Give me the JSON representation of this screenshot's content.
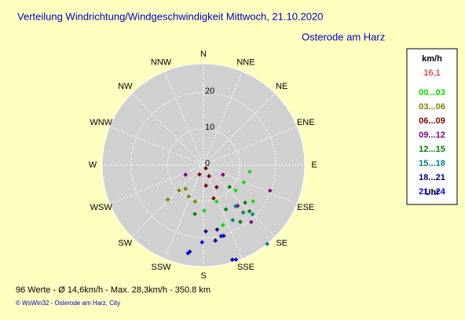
{
  "chart_data": {
    "type": "polar-scatter",
    "title": "Verteilung Windrichtung/Windgeschwindigkeit  Mittwoch, 21.10.2020",
    "subtitle": "Osterode am Harz",
    "directions": [
      "N",
      "NNE",
      "NE",
      "ENE",
      "E",
      "ESE",
      "SE",
      "SSE",
      "S",
      "SSW",
      "SW",
      "WSW",
      "W",
      "WNW",
      "NW",
      "NNW"
    ],
    "rlim": [
      0,
      28
    ],
    "rticks": [
      0,
      10,
      20
    ],
    "grid": true,
    "legend_title": "km/h",
    "legend_value": "16,1",
    "legend_footer": "Uhr",
    "series": [
      {
        "name": "00...03",
        "color": "#00e000",
        "x": [
          98,
          113,
          128,
          126,
          160,
          179,
          162
        ],
        "values": [
          12.9,
          12.1,
          11.3,
          17.0,
          10.7,
          12.6,
          17.4
        ]
      },
      {
        "name": "03...06",
        "color": "#808000",
        "x": [
          224,
          205,
          193,
          226,
          217
        ],
        "values": [
          9.7,
          9.6,
          10.3,
          13.7,
          8.2
        ]
      },
      {
        "name": "06...09",
        "color": "#800000",
        "x": [
          143,
          203,
          153,
          173,
          149,
          163
        ],
        "values": [
          1.1,
          2.8,
          3.4,
          5.7,
          7.1,
          9.6
        ]
      },
      {
        "name": "09...12",
        "color": "#800080",
        "x": [
          242,
          116,
          140,
          140,
          111
        ],
        "values": [
          5.6,
          6.0,
          14.7,
          20.5,
          19.7
        ]
      },
      {
        "name": "12...15",
        "color": "#008000",
        "x": [
          130,
          132,
          135,
          153,
          190,
          147
        ],
        "values": [
          9.4,
          15.5,
          18.0,
          13.7,
          13.7,
          18.7
        ]
      },
      {
        "name": "15...18",
        "color": "#008080",
        "x": [
          142,
          140,
          152,
          141,
          135
        ],
        "values": [
          14.4,
          17.1,
          17.2,
          28.0,
          19.2
        ]
      },
      {
        "name": "18...21",
        "color": "#000080",
        "x": [
          178,
          168,
          164,
          171,
          163,
          189
        ],
        "values": [
          18.3,
          18.2,
          20.3,
          21.1,
          27.3,
          24.2
        ]
      },
      {
        "name": "21...24",
        "color": "#0000ff",
        "x": [
          166,
          181,
          190,
          161
        ],
        "values": [
          20.2,
          21.3,
          24.7,
          27.6
        ]
      }
    ],
    "footer": "96 Werte   -   Ø 14,6km/h  -  Max. 28,3km/h   -   350.8 km",
    "credit": "© WsWin32  -  Osterode am Harz, City"
  }
}
